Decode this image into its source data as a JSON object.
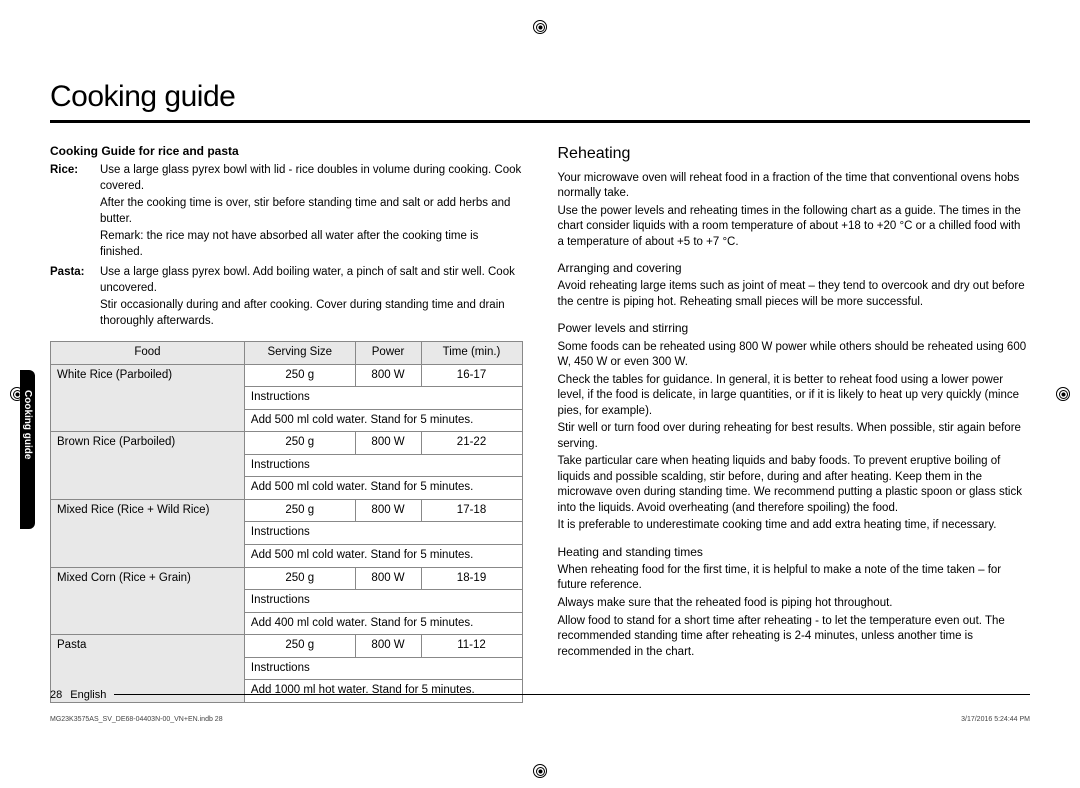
{
  "title": "Cooking guide",
  "side_tab": "Cooking guide",
  "page_num": "28",
  "page_lang": "English",
  "micro_left": "MG23K3575AS_SV_DE68-04403N-00_VN+EN.indb   28",
  "micro_right": "3/17/2016   5:24:44 PM",
  "left": {
    "heading": "Cooking Guide for rice and pasta",
    "rice_label": "Rice:",
    "rice_p1": "Use a large glass pyrex bowl with lid - rice doubles in volume during cooking. Cook covered.",
    "rice_p2": "After the cooking time is over, stir before standing time and salt or add herbs and butter.",
    "rice_p3": "Remark: the rice may not have absorbed all water after the cooking time is finished.",
    "pasta_label": "Pasta:",
    "pasta_p1": "Use a large glass pyrex bowl. Add boiling water, a pinch of salt and stir well. Cook uncovered.",
    "pasta_p2": "Stir occasionally during and after cooking. Cover during standing time and drain thoroughly afterwards.",
    "table": {
      "headers": {
        "food": "Food",
        "serving": "Serving Size",
        "power": "Power",
        "time": "Time (min.)"
      },
      "instr_label": "Instructions",
      "rows": [
        {
          "food": "White Rice (Parboiled)",
          "serving": "250 g",
          "power": "800 W",
          "time": "16-17",
          "instr": "Add 500 ml cold water. Stand for 5 minutes."
        },
        {
          "food": "Brown Rice (Parboiled)",
          "serving": "250 g",
          "power": "800 W",
          "time": "21-22",
          "instr": "Add 500 ml cold water. Stand for 5 minutes."
        },
        {
          "food": "Mixed Rice (Rice + Wild Rice)",
          "serving": "250 g",
          "power": "800 W",
          "time": "17-18",
          "instr": "Add 500 ml cold water. Stand for 5 minutes."
        },
        {
          "food": "Mixed Corn (Rice + Grain)",
          "serving": "250 g",
          "power": "800 W",
          "time": "18-19",
          "instr": "Add 400 ml cold water. Stand for 5 minutes."
        },
        {
          "food": "Pasta",
          "serving": "250 g",
          "power": "800 W",
          "time": "11-12",
          "instr": "Add 1000 ml hot water. Stand for 5 minutes."
        }
      ]
    }
  },
  "right": {
    "heading": "Reheating",
    "intro_p1": "Your microwave oven will reheat food in a fraction of the time that conventional ovens hobs normally take.",
    "intro_p2": "Use the power levels and reheating times in the following chart as a guide. The times in the chart consider liquids with a room temperature of about +18 to +20 °C or a chilled food with a temperature of about +5 to +7 °C.",
    "s1_h": "Arranging and covering",
    "s1_p1": "Avoid reheating large items such as joint of meat – they tend to overcook and dry out before the centre is piping hot. Reheating small pieces will be more successful.",
    "s2_h": "Power levels and stirring",
    "s2_p1": "Some foods can be reheated using 800 W power while others should be reheated using 600 W, 450 W or even 300 W.",
    "s2_p2": "Check the tables for guidance. In general, it is better to reheat food using a lower power level, if the food is delicate, in large quantities, or if it is likely to heat up very quickly (mince pies, for example).",
    "s2_p3": "Stir well or turn food over during reheating for best results. When possible, stir again before serving.",
    "s2_p4": "Take particular care when heating liquids and baby foods. To prevent eruptive boiling of liquids and possible scalding, stir before, during and after heating. Keep them in the microwave oven during standing time. We recommend putting a plastic spoon or glass stick into the liquids. Avoid overheating (and therefore spoiling) the food.",
    "s2_p5": "It is preferable to underestimate cooking time and add extra heating time, if necessary.",
    "s3_h": "Heating and standing times",
    "s3_p1": "When reheating food for the first time, it is helpful to make a note of the time taken – for future reference.",
    "s3_p2": "Always make sure that the reheated food is piping hot throughout.",
    "s3_p3": "Allow food to stand for a short time after reheating - to let the temperature even out. The recommended standing time after reheating is 2-4 minutes, unless another time is recommended in the chart."
  }
}
